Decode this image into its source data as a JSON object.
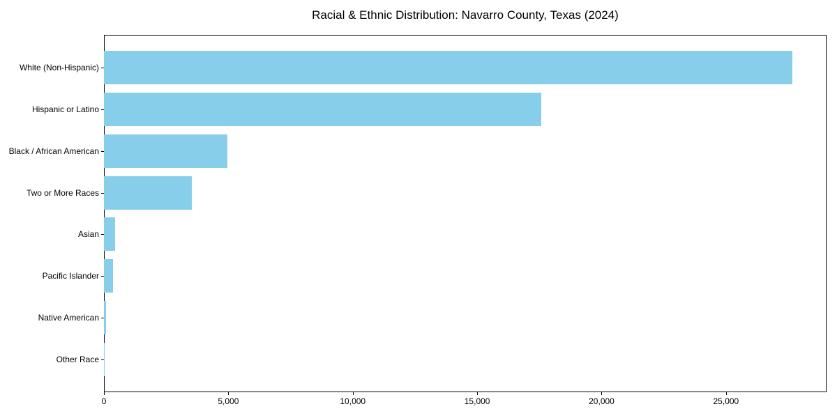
{
  "chart_data": {
    "type": "bar",
    "orientation": "horizontal",
    "title": "Racial & Ethnic Distribution: Navarro County, Texas (2024)",
    "categories": [
      "White (Non-Hispanic)",
      "Hispanic or Latino",
      "Black / African American",
      "Two or More Races",
      "Asian",
      "Pacific Islander",
      "Native American",
      "Other Race"
    ],
    "values": [
      27660,
      17570,
      4960,
      3530,
      450,
      360,
      90,
      25
    ],
    "bar_color": "#87CEEB",
    "xlabel": "",
    "ylabel": "",
    "xlim": [
      0,
      29040
    ],
    "x_ticks": [
      {
        "value": 0,
        "label": "0"
      },
      {
        "value": 5000,
        "label": "5,000"
      },
      {
        "value": 10000,
        "label": "10,000"
      },
      {
        "value": 15000,
        "label": "15,000"
      },
      {
        "value": 20000,
        "label": "20,000"
      },
      {
        "value": 25000,
        "label": "25,000"
      }
    ],
    "grid": false,
    "legend": null,
    "background": "#ffffff",
    "spine_color": "#000000",
    "text_color": "#000000"
  }
}
